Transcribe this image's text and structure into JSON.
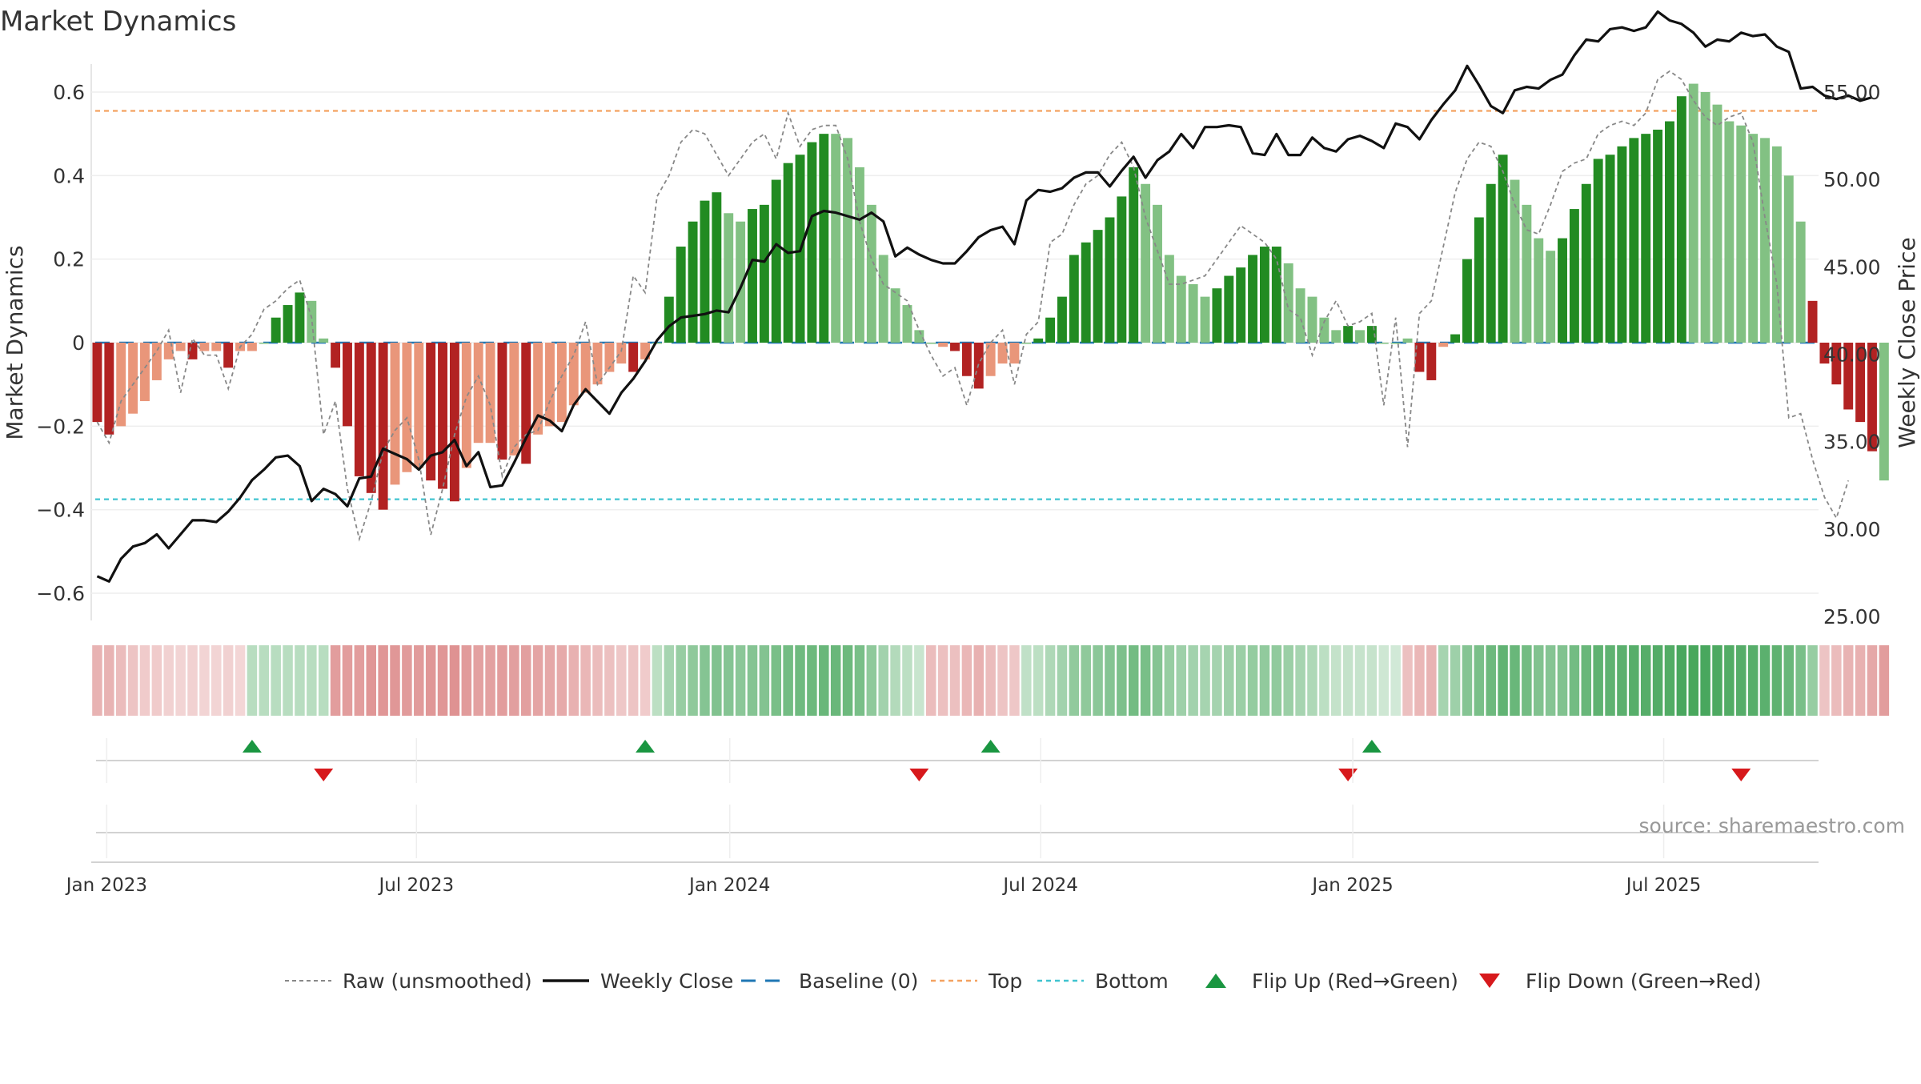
{
  "title": "Market Dynamics",
  "y_left_label": "Market Dynamics",
  "y_right_label": "Weekly Close Price",
  "source": "source: sharemaestro.com",
  "left_ticks": [
    {
      "v": 0.6,
      "label": "0.6"
    },
    {
      "v": 0.4,
      "label": "0.4"
    },
    {
      "v": 0.2,
      "label": "0.2"
    },
    {
      "v": 0.0,
      "label": "0"
    },
    {
      "v": -0.2,
      "label": "−0.2"
    },
    {
      "v": -0.4,
      "label": "−0.4"
    },
    {
      "v": -0.6,
      "label": "−0.6"
    }
  ],
  "right_ticks": [
    {
      "v": 55,
      "label": "55.00"
    },
    {
      "v": 50,
      "label": "50.00"
    },
    {
      "v": 45,
      "label": "45.00"
    },
    {
      "v": 40,
      "label": "40.00"
    },
    {
      "v": 35,
      "label": "35.00"
    },
    {
      "v": 30,
      "label": "30.00"
    },
    {
      "v": 25,
      "label": "25.00"
    }
  ],
  "x_ticks": [
    {
      "label": "Jan 2023",
      "week": 1.3
    },
    {
      "label": "Jul 2023",
      "week": 27.3
    },
    {
      "label": "Jan 2024",
      "week": 53.6
    },
    {
      "label": "Jul 2024",
      "week": 79.7
    },
    {
      "label": "Jan 2025",
      "week": 105.9
    },
    {
      "label": "Jul 2025",
      "week": 132.0
    }
  ],
  "legend": [
    {
      "key": "raw",
      "label": "Raw (unsmoothed)"
    },
    {
      "key": "close",
      "label": "Weekly Close"
    },
    {
      "key": "baseline",
      "label": "Baseline (0)"
    },
    {
      "key": "top",
      "label": "Top"
    },
    {
      "key": "bottom",
      "label": "Bottom"
    },
    {
      "key": "flip_up",
      "label": "Flip Up (Red→Green)"
    },
    {
      "key": "flip_down",
      "label": "Flip Down (Green→Red)"
    }
  ],
  "colors": {
    "dark_green": "#228b22",
    "light_green": "#82c183",
    "dark_red": "#b22222",
    "light_red": "#e9967a",
    "close_line": "#111111",
    "raw_line": "#888888",
    "baseline": "#1f77b4",
    "top": "#f4a261",
    "bottom": "#40c4d0",
    "flip_up": "#1a9641",
    "flip_down": "#d7191c"
  },
  "chart_data": {
    "type": "bar",
    "weeks_count": 145,
    "start_week": "2023-01-02",
    "top_level": 0.555,
    "bottom_level": -0.375,
    "baseline": 0,
    "ylim_left": [
      -0.66,
      0.66
    ],
    "ylim_right": [
      25,
      56
    ],
    "dynamics": [
      -0.19,
      -0.22,
      -0.2,
      -0.17,
      -0.14,
      -0.09,
      -0.04,
      -0.02,
      -0.04,
      -0.02,
      -0.02,
      -0.06,
      -0.02,
      -0.02,
      0.0,
      0.06,
      0.09,
      0.12,
      0.1,
      0.01,
      -0.06,
      -0.2,
      -0.32,
      -0.36,
      -0.4,
      -0.34,
      -0.31,
      -0.3,
      -0.33,
      -0.35,
      -0.38,
      -0.3,
      -0.24,
      -0.24,
      -0.28,
      -0.27,
      -0.29,
      -0.22,
      -0.2,
      -0.19,
      -0.15,
      -0.12,
      -0.1,
      -0.07,
      -0.05,
      -0.07,
      -0.04,
      0.0,
      0.11,
      0.23,
      0.29,
      0.34,
      0.36,
      0.31,
      0.29,
      0.32,
      0.33,
      0.39,
      0.43,
      0.45,
      0.48,
      0.5,
      0.5,
      0.49,
      0.42,
      0.33,
      0.21,
      0.13,
      0.09,
      0.03,
      0.0,
      -0.01,
      -0.02,
      -0.08,
      -0.11,
      -0.08,
      -0.05,
      -0.05,
      0.0,
      0.01,
      0.06,
      0.11,
      0.21,
      0.24,
      0.27,
      0.3,
      0.35,
      0.42,
      0.38,
      0.33,
      0.21,
      0.16,
      0.14,
      0.11,
      0.13,
      0.16,
      0.18,
      0.21,
      0.23,
      0.23,
      0.19,
      0.13,
      0.11,
      0.06,
      0.03,
      0.04,
      0.03,
      0.04,
      0.0,
      0.0,
      0.01,
      -0.07,
      -0.09,
      -0.01,
      0.02,
      0.2,
      0.3,
      0.38,
      0.45,
      0.39,
      0.33,
      0.25,
      0.22,
      0.25,
      0.32,
      0.38,
      0.44,
      0.45,
      0.47,
      0.49,
      0.5,
      0.51,
      0.53,
      0.59,
      0.62,
      0.6,
      0.57,
      0.53,
      0.52,
      0.5,
      0.49,
      0.47,
      0.4,
      0.29,
      0.1,
      -0.05,
      -0.1,
      -0.16,
      -0.19,
      -0.26,
      -0.33
    ],
    "bar_color": [
      "dr",
      "dr",
      "lr",
      "lr",
      "lr",
      "lr",
      "lr",
      "lr",
      "dr",
      "lr",
      "lr",
      "dr",
      "lr",
      "lr",
      "lg",
      "dg",
      "dg",
      "dg",
      "lg",
      "lg",
      "dr",
      "dr",
      "dr",
      "dr",
      "dr",
      "lr",
      "lr",
      "lr",
      "dr",
      "dr",
      "dr",
      "lr",
      "lr",
      "lr",
      "dr",
      "lr",
      "dr",
      "lr",
      "lr",
      "lr",
      "lr",
      "lr",
      "lr",
      "lr",
      "lr",
      "dr",
      "lr",
      "lg",
      "dg",
      "dg",
      "dg",
      "dg",
      "dg",
      "lg",
      "lg",
      "dg",
      "dg",
      "dg",
      "dg",
      "dg",
      "dg",
      "dg",
      "lg",
      "lg",
      "lg",
      "lg",
      "lg",
      "lg",
      "lg",
      "lg",
      "lg",
      "lr",
      "dr",
      "dr",
      "dr",
      "lr",
      "lr",
      "lr",
      "lg",
      "dg",
      "dg",
      "dg",
      "dg",
      "dg",
      "dg",
      "dg",
      "dg",
      "dg",
      "lg",
      "lg",
      "lg",
      "lg",
      "lg",
      "lg",
      "dg",
      "dg",
      "dg",
      "dg",
      "dg",
      "dg",
      "lg",
      "lg",
      "lg",
      "lg",
      "lg",
      "dg",
      "lg",
      "dg",
      "lg",
      "lg",
      "lg",
      "dr",
      "dr",
      "lr",
      "dg",
      "dg",
      "dg",
      "dg",
      "dg",
      "lg",
      "lg",
      "lg",
      "lg",
      "dg",
      "dg",
      "dg",
      "dg",
      "dg",
      "dg",
      "dg",
      "dg",
      "dg",
      "dg",
      "dg",
      "lg",
      "lg",
      "lg",
      "lg",
      "lg",
      "lg",
      "lg",
      "lg",
      "lg",
      "lg",
      "dr",
      "dr",
      "dr",
      "dr",
      "dr",
      "dr"
    ],
    "raw": [
      -0.19,
      -0.24,
      -0.14,
      -0.1,
      -0.06,
      -0.02,
      0.03,
      -0.12,
      0.01,
      -0.03,
      -0.03,
      -0.11,
      -0.01,
      0.02,
      0.08,
      0.1,
      0.13,
      0.15,
      0.06,
      -0.22,
      -0.14,
      -0.35,
      -0.47,
      -0.38,
      -0.26,
      -0.21,
      -0.18,
      -0.28,
      -0.46,
      -0.35,
      -0.22,
      -0.13,
      -0.08,
      -0.15,
      -0.32,
      -0.25,
      -0.22,
      -0.21,
      -0.14,
      -0.08,
      -0.03,
      0.05,
      -0.1,
      -0.06,
      -0.02,
      0.16,
      0.12,
      0.35,
      0.4,
      0.48,
      0.51,
      0.5,
      0.45,
      0.4,
      0.44,
      0.48,
      0.5,
      0.44,
      0.55,
      0.47,
      0.51,
      0.52,
      0.52,
      0.44,
      0.29,
      0.2,
      0.14,
      0.12,
      0.1,
      0.03,
      -0.03,
      -0.08,
      -0.06,
      -0.15,
      -0.05,
      0.0,
      0.03,
      -0.1,
      0.02,
      0.05,
      0.24,
      0.26,
      0.33,
      0.38,
      0.4,
      0.45,
      0.48,
      0.42,
      0.3,
      0.22,
      0.14,
      0.14,
      0.15,
      0.16,
      0.2,
      0.24,
      0.28,
      0.26,
      0.24,
      0.2,
      0.08,
      0.06,
      -0.03,
      0.05,
      0.1,
      0.04,
      0.05,
      0.07,
      -0.15,
      0.06,
      -0.25,
      0.07,
      0.1,
      0.23,
      0.36,
      0.44,
      0.48,
      0.47,
      0.41,
      0.33,
      0.27,
      0.26,
      0.33,
      0.41,
      0.43,
      0.44,
      0.5,
      0.52,
      0.53,
      0.52,
      0.55,
      0.63,
      0.65,
      0.63,
      0.58,
      0.54,
      0.52,
      0.54,
      0.55,
      0.48,
      0.3,
      0.14,
      -0.18,
      -0.17,
      -0.28,
      -0.37,
      -0.42,
      -0.33
    ],
    "weekly_close": [
      27.3,
      27.0,
      28.3,
      29.0,
      29.2,
      29.7,
      28.9,
      29.7,
      30.5,
      30.5,
      30.4,
      31.0,
      31.8,
      32.8,
      33.4,
      34.1,
      34.2,
      33.6,
      31.6,
      32.3,
      32.0,
      31.3,
      32.9,
      33.0,
      34.6,
      34.3,
      34.0,
      33.4,
      34.2,
      34.4,
      35.1,
      33.6,
      34.4,
      32.4,
      32.5,
      33.8,
      35.2,
      36.5,
      36.2,
      35.6,
      37.1,
      38.0,
      37.3,
      36.6,
      37.8,
      38.6,
      39.6,
      40.8,
      41.6,
      42.1,
      42.2,
      42.3,
      42.5,
      42.4,
      43.8,
      45.4,
      45.3,
      46.3,
      45.8,
      45.9,
      47.9,
      48.2,
      48.1,
      47.9,
      47.7,
      48.1,
      47.6,
      45.6,
      46.1,
      45.7,
      45.4,
      45.2,
      45.2,
      45.9,
      46.7,
      47.1,
      47.3,
      46.3,
      48.8,
      49.4,
      49.3,
      49.5,
      50.1,
      50.4,
      50.4,
      49.6,
      50.5,
      51.3,
      50.1,
      51.1,
      51.6,
      52.6,
      51.8,
      53.0,
      53.0,
      53.1,
      53.0,
      51.5,
      51.4,
      52.6,
      51.4,
      51.4,
      52.4,
      51.8,
      51.6,
      52.3,
      52.5,
      52.2,
      51.8,
      53.2,
      53.0,
      52.3,
      53.4,
      54.3,
      55.1,
      56.5,
      55.4,
      54.2,
      53.8,
      55.1,
      55.3,
      55.2,
      55.7,
      56.0,
      57.1,
      58.0,
      57.9,
      58.6,
      58.7,
      58.5,
      58.7,
      59.6,
      59.1,
      58.9,
      58.4,
      57.6,
      58.0,
      57.9,
      58.4,
      58.2,
      58.3,
      57.6,
      57.3,
      55.2,
      55.3,
      54.8,
      54.6,
      54.8,
      54.5,
      54.7
    ],
    "state_strip": [
      -0.3,
      -0.3,
      -0.25,
      -0.2,
      -0.15,
      -0.15,
      -0.12,
      -0.1,
      -0.12,
      -0.1,
      -0.1,
      -0.12,
      -0.08,
      0.25,
      0.25,
      0.25,
      0.25,
      0.25,
      0.25,
      0.25,
      -0.45,
      -0.45,
      -0.45,
      -0.5,
      -0.5,
      -0.48,
      -0.46,
      -0.46,
      -0.48,
      -0.5,
      -0.52,
      -0.46,
      -0.42,
      -0.42,
      -0.45,
      -0.44,
      -0.44,
      -0.4,
      -0.38,
      -0.36,
      -0.32,
      -0.28,
      -0.25,
      -0.22,
      -0.18,
      -0.2,
      -0.15,
      0.22,
      0.35,
      0.45,
      0.5,
      0.55,
      0.58,
      0.55,
      0.52,
      0.55,
      0.56,
      0.62,
      0.66,
      0.68,
      0.7,
      0.72,
      0.72,
      0.7,
      0.62,
      0.5,
      0.38,
      0.28,
      0.22,
      0.15,
      -0.25,
      -0.22,
      -0.22,
      -0.28,
      -0.32,
      -0.25,
      -0.2,
      -0.18,
      0.2,
      0.22,
      0.3,
      0.38,
      0.48,
      0.5,
      0.52,
      0.55,
      0.6,
      0.66,
      0.62,
      0.55,
      0.45,
      0.4,
      0.38,
      0.35,
      0.36,
      0.4,
      0.42,
      0.46,
      0.48,
      0.48,
      0.42,
      0.35,
      0.3,
      0.22,
      0.18,
      0.18,
      0.16,
      0.17,
      0.12,
      0.1,
      -0.22,
      -0.28,
      -0.3,
      0.35,
      0.4,
      0.55,
      0.62,
      0.7,
      0.76,
      0.72,
      0.66,
      0.58,
      0.55,
      0.58,
      0.66,
      0.72,
      0.78,
      0.78,
      0.8,
      0.82,
      0.84,
      0.85,
      0.86,
      0.9,
      0.92,
      0.9,
      0.88,
      0.86,
      0.84,
      0.82,
      0.8,
      0.78,
      0.72,
      0.62,
      0.45,
      -0.2,
      -0.25,
      -0.3,
      -0.32,
      -0.38,
      -0.45
    ],
    "flip_up_weeks": [
      13,
      46,
      75,
      107
    ],
    "flip_down_weeks": [
      19,
      69,
      105,
      138
    ]
  }
}
